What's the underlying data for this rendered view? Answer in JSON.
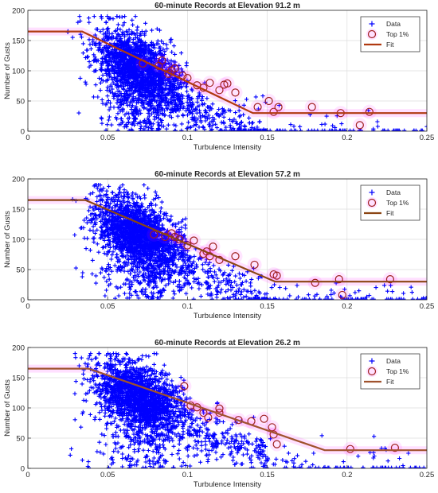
{
  "chart_data": [
    {
      "type": "scatter",
      "title": "60-minute Records at Elevation 91.2 m",
      "xlabel": "Turbulence Intensity",
      "ylabel": "Number of Gusts",
      "xlim": [
        0,
        0.25
      ],
      "ylim": [
        0,
        200
      ],
      "xticks": [
        "0",
        "0.05",
        "0.1",
        "0.15",
        "0.2",
        "0.25"
      ],
      "yticks": [
        "0",
        "50",
        "100",
        "150",
        "200"
      ],
      "grid": true,
      "legend_position": "top-right",
      "legend": [
        "Data",
        "Top 1%",
        "Fit"
      ],
      "colors": {
        "data": "#0000ff",
        "top": "#a02020",
        "fit": "#b03a10",
        "halo": "#ff00ff"
      },
      "data_cloud": {
        "n": 2400,
        "x_range": [
          0.03,
          0.25
        ],
        "x_mean": 0.07,
        "y_trend": "decreasing",
        "y_range": [
          0,
          190
        ]
      },
      "top1": [
        [
          0.072,
          112
        ],
        [
          0.082,
          108
        ],
        [
          0.084,
          117
        ],
        [
          0.088,
          95
        ],
        [
          0.09,
          100
        ],
        [
          0.092,
          104
        ],
        [
          0.097,
          92
        ],
        [
          0.1,
          88
        ],
        [
          0.106,
          76
        ],
        [
          0.11,
          72
        ],
        [
          0.114,
          80
        ],
        [
          0.12,
          68
        ],
        [
          0.123,
          77
        ],
        [
          0.125,
          79
        ],
        [
          0.13,
          64
        ],
        [
          0.144,
          40
        ],
        [
          0.151,
          50
        ],
        [
          0.154,
          32
        ],
        [
          0.157,
          40
        ],
        [
          0.178,
          40
        ],
        [
          0.196,
          30
        ],
        [
          0.208,
          10
        ],
        [
          0.214,
          32
        ]
      ],
      "fit": [
        [
          0,
          165
        ],
        [
          0.034,
          165
        ],
        [
          0.141,
          30
        ],
        [
          0.25,
          30
        ]
      ]
    },
    {
      "type": "scatter",
      "title": "60-minute Records at Elevation 57.2 m",
      "xlabel": "Turbulence Intensity",
      "ylabel": "Number of Gusts",
      "xlim": [
        0,
        0.25
      ],
      "ylim": [
        0,
        200
      ],
      "xticks": [
        "0",
        "0.05",
        "0.1",
        "0.15",
        "0.2",
        "0.25"
      ],
      "yticks": [
        "0",
        "50",
        "100",
        "150",
        "200"
      ],
      "grid": true,
      "legend_position": "top-right",
      "legend": [
        "Data",
        "Top 1%",
        "Fit"
      ],
      "colors": {
        "data": "#0000ff",
        "top": "#a02020",
        "fit": "#8b4513",
        "halo": "#ff00ff"
      },
      "data_cloud": {
        "n": 2400,
        "x_range": [
          0.02,
          0.25
        ],
        "x_mean": 0.07,
        "y_trend": "decreasing",
        "y_range": [
          0,
          190
        ]
      },
      "top1": [
        [
          0.079,
          108
        ],
        [
          0.086,
          104
        ],
        [
          0.09,
          110
        ],
        [
          0.092,
          104
        ],
        [
          0.095,
          100
        ],
        [
          0.1,
          90
        ],
        [
          0.104,
          98
        ],
        [
          0.11,
          76
        ],
        [
          0.112,
          80
        ],
        [
          0.114,
          72
        ],
        [
          0.116,
          88
        ],
        [
          0.12,
          66
        ],
        [
          0.13,
          72
        ],
        [
          0.142,
          58
        ],
        [
          0.154,
          42
        ],
        [
          0.156,
          40
        ],
        [
          0.18,
          28
        ],
        [
          0.195,
          34
        ],
        [
          0.197,
          8
        ],
        [
          0.227,
          34
        ]
      ],
      "fit": [
        [
          0,
          165
        ],
        [
          0.036,
          165
        ],
        [
          0.155,
          30
        ],
        [
          0.25,
          30
        ]
      ]
    },
    {
      "type": "scatter",
      "title": "60-minute Records at Elevation 26.2 m",
      "xlabel": "Turbulence Intensity",
      "ylabel": "Number of Gusts",
      "xlim": [
        0,
        0.25
      ],
      "ylim": [
        0,
        200
      ],
      "xticks": [
        "0",
        "0.05",
        "0.1",
        "0.15",
        "0.2",
        "0.25"
      ],
      "yticks": [
        "0",
        "50",
        "100",
        "150",
        "200"
      ],
      "grid": true,
      "legend_position": "top-right",
      "legend": [
        "Data",
        "Top 1%",
        "Fit"
      ],
      "colors": {
        "data": "#0000ff",
        "top": "#a02020",
        "fit": "#a0522d",
        "halo": "#ff00ff"
      },
      "data_cloud": {
        "n": 2400,
        "x_range": [
          0.025,
          0.25
        ],
        "x_mean": 0.07,
        "y_trend": "decreasing",
        "y_range": [
          0,
          190
        ]
      },
      "top1": [
        [
          0.098,
          136
        ],
        [
          0.102,
          104
        ],
        [
          0.106,
          101
        ],
        [
          0.11,
          92
        ],
        [
          0.113,
          84
        ],
        [
          0.12,
          99
        ],
        [
          0.12,
          92
        ],
        [
          0.132,
          80
        ],
        [
          0.14,
          78
        ],
        [
          0.148,
          82
        ],
        [
          0.153,
          68
        ],
        [
          0.154,
          56
        ],
        [
          0.156,
          40
        ],
        [
          0.202,
          32
        ],
        [
          0.23,
          34
        ]
      ],
      "fit": [
        [
          0,
          165
        ],
        [
          0.038,
          165
        ],
        [
          0.186,
          30
        ],
        [
          0.25,
          30
        ]
      ]
    }
  ]
}
